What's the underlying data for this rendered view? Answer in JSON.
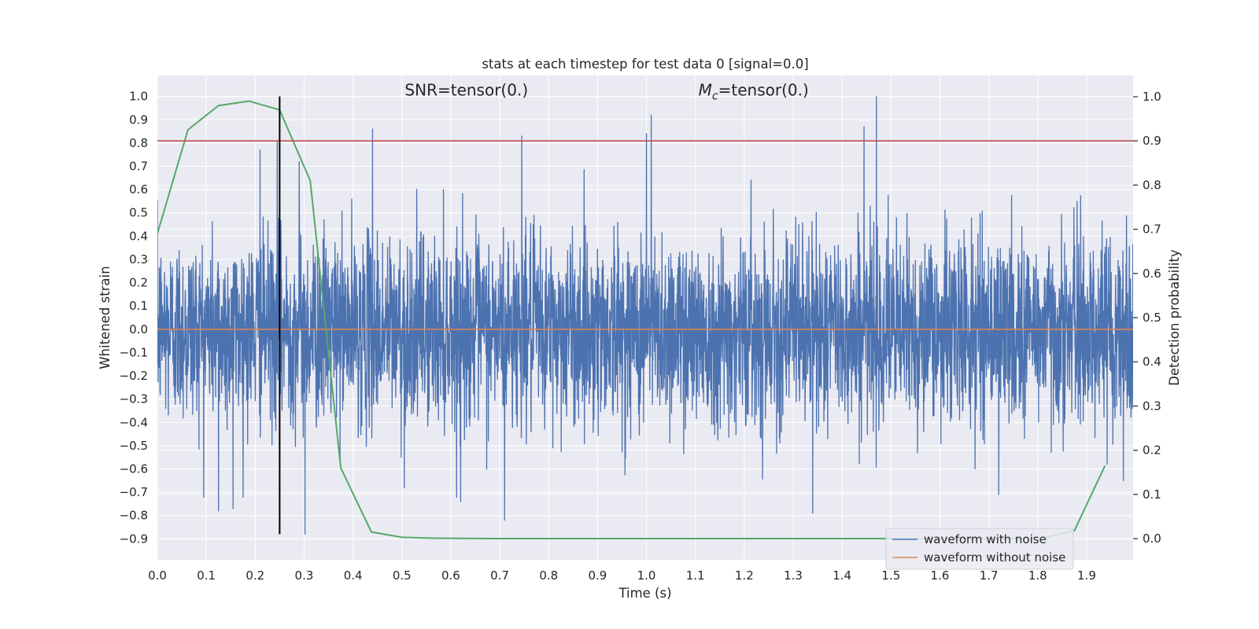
{
  "chart_data": {
    "type": "line",
    "title": "stats at each timestep for test data 0 [signal=0.0]",
    "xlabel": "Time (s)",
    "ylabel": "Whitened strain",
    "y2label": "Detection probability",
    "xlim": [
      0.0,
      1.995
    ],
    "ylim": [
      -0.99,
      1.09
    ],
    "y2lim": [
      -0.048,
      1.048
    ],
    "x_ticks": [
      0.0,
      0.1,
      0.2,
      0.3,
      0.4,
      0.5,
      0.6,
      0.7,
      0.8,
      0.9,
      1.0,
      1.1,
      1.2,
      1.3,
      1.4,
      1.5,
      1.6,
      1.7,
      1.8,
      1.9
    ],
    "x_tick_labels": [
      "0.0",
      "0.1",
      "0.2",
      "0.3",
      "0.4",
      "0.5",
      "0.6",
      "0.7",
      "0.8",
      "0.9",
      "1.0",
      "1.1",
      "1.2",
      "1.3",
      "1.4",
      "1.5",
      "1.6",
      "1.7",
      "1.8",
      "1.9"
    ],
    "y_ticks": [
      -0.9,
      -0.8,
      -0.7,
      -0.6,
      -0.5,
      -0.4,
      -0.3,
      -0.2,
      -0.1,
      0.0,
      0.1,
      0.2,
      0.3,
      0.4,
      0.5,
      0.6,
      0.7,
      0.8,
      0.9,
      1.0
    ],
    "y_tick_labels": [
      "−0.9",
      "−0.8",
      "−0.7",
      "−0.6",
      "−0.5",
      "−0.4",
      "−0.3",
      "−0.2",
      "−0.1",
      "0.0",
      "0.1",
      "0.2",
      "0.3",
      "0.4",
      "0.5",
      "0.6",
      "0.7",
      "0.8",
      "0.9",
      "1.0"
    ],
    "y2_ticks": [
      0.0,
      0.1,
      0.2,
      0.3,
      0.4,
      0.5,
      0.6,
      0.7,
      0.8,
      0.9,
      1.0
    ],
    "y2_tick_labels": [
      "0.0",
      "0.1",
      "0.2",
      "0.3",
      "0.4",
      "0.5",
      "0.6",
      "0.7",
      "0.8",
      "0.9",
      "1.0"
    ],
    "grid": true,
    "legend_position": "lower-right",
    "annotations": [
      {
        "text": "SNR=tensor(0.)",
        "x": 0.5,
        "y": 1.0,
        "style": "plain"
      },
      {
        "text_parts": [
          "M",
          "c",
          "=tensor(0.)"
        ],
        "x": 1.1,
        "y": 1.0,
        "style": "mathsub"
      }
    ],
    "series": [
      {
        "name": "waveform with noise",
        "color": "#4c72b0",
        "axis": "left",
        "sample_rate": 2048,
        "noise_std": 0.2,
        "seed": 12345,
        "clip": [
          -0.88,
          1.0
        ],
        "notable_peaks": [
          {
            "x": 0.125,
            "y": -0.78
          },
          {
            "x": 0.155,
            "y": -0.77
          },
          {
            "x": 0.21,
            "y": 0.77
          },
          {
            "x": 0.245,
            "y": 0.81
          },
          {
            "x": 0.29,
            "y": 0.72
          },
          {
            "x": 0.302,
            "y": -0.88
          },
          {
            "x": 0.44,
            "y": 0.86
          },
          {
            "x": 0.505,
            "y": -0.68
          },
          {
            "x": 0.62,
            "y": -0.74
          },
          {
            "x": 0.71,
            "y": -0.82
          },
          {
            "x": 0.745,
            "y": 0.83
          },
          {
            "x": 1.0,
            "y": 0.84
          },
          {
            "x": 1.01,
            "y": 0.92
          },
          {
            "x": 1.34,
            "y": -0.79
          },
          {
            "x": 1.445,
            "y": 0.87
          },
          {
            "x": 1.47,
            "y": 1.0
          },
          {
            "x": 1.72,
            "y": -0.71
          },
          {
            "x": 1.975,
            "y": -0.65
          }
        ]
      },
      {
        "name": "waveform without noise",
        "color": "#dd8452",
        "axis": "left",
        "x": [
          0.0,
          1.995
        ],
        "y": [
          0.0,
          0.0
        ]
      },
      {
        "name": "",
        "color": "#55a868",
        "axis": "right",
        "x": [
          0.0,
          0.0625,
          0.125,
          0.1875,
          0.25,
          0.3125,
          0.375,
          0.4375,
          0.5,
          0.5625,
          0.625,
          0.6875,
          0.75,
          0.8125,
          0.875,
          0.9375,
          1.0,
          1.0625,
          1.125,
          1.1875,
          1.25,
          1.3125,
          1.375,
          1.4375,
          1.5,
          1.5625,
          1.625,
          1.6875,
          1.75,
          1.8125,
          1.875,
          1.9375
        ],
        "y": [
          0.69,
          0.925,
          0.98,
          0.99,
          0.97,
          0.81,
          0.16,
          0.015,
          0.003,
          0.001,
          0.0005,
          0.0,
          0.0,
          0.0,
          0.0,
          0.0,
          0.0,
          0.0,
          0.0,
          0.0,
          0.0,
          0.0,
          0.0,
          0.0,
          0.0,
          0.0,
          0.0,
          0.0,
          0.0,
          0.002,
          0.018,
          0.165
        ]
      }
    ],
    "threshold_line": {
      "color": "#c44e52",
      "axis": "right",
      "y": 0.9
    },
    "marker_line": {
      "color": "#000000",
      "axis": "left",
      "x": 0.25,
      "y_range": [
        -0.88,
        1.0
      ]
    }
  }
}
